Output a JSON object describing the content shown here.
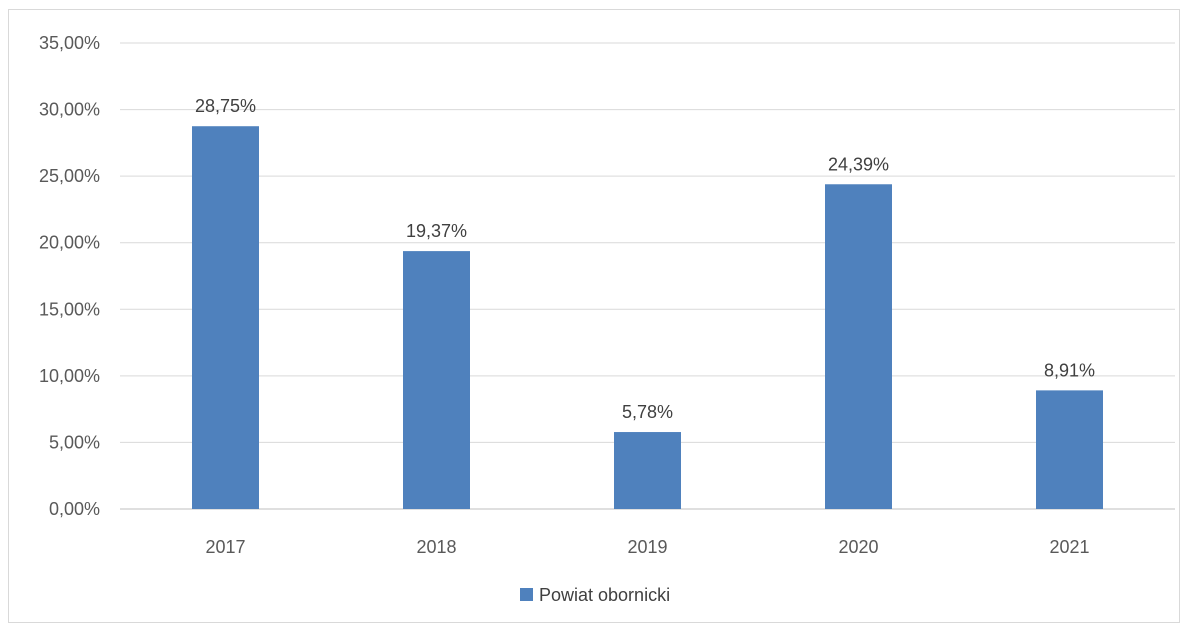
{
  "chart_data": {
    "type": "bar",
    "title": "",
    "xlabel": "",
    "ylabel": "",
    "categories": [
      "2017",
      "2018",
      "2019",
      "2020",
      "2021"
    ],
    "series": [
      {
        "name": "Powiat obornicki",
        "values": [
          28.75,
          19.37,
          5.78,
          24.39,
          8.91
        ],
        "labels": [
          "28,75%",
          "19,37%",
          "5,78%",
          "24,39%",
          "8,91%"
        ],
        "color": "#4f81bd"
      }
    ],
    "ylim": [
      0,
      35
    ],
    "yticks": [
      0,
      5,
      10,
      15,
      20,
      25,
      30,
      35
    ],
    "ytick_labels": [
      "0,00%",
      "5,00%",
      "10,00%",
      "15,00%",
      "20,00%",
      "25,00%",
      "30,00%",
      "35,00%"
    ],
    "grid": true,
    "grid_color": "#d9d9d9",
    "legend_position": "bottom"
  }
}
